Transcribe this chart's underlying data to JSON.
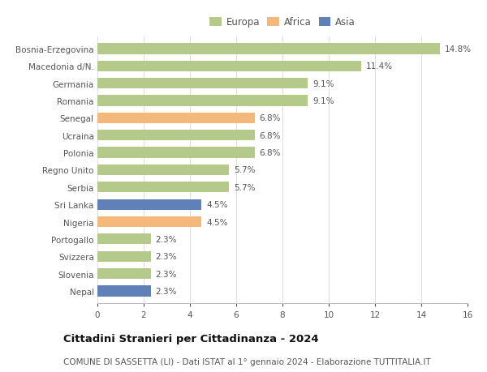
{
  "countries": [
    "Bosnia-Erzegovina",
    "Macedonia d/N.",
    "Germania",
    "Romania",
    "Senegal",
    "Ucraina",
    "Polonia",
    "Regno Unito",
    "Serbia",
    "Sri Lanka",
    "Nigeria",
    "Portogallo",
    "Svizzera",
    "Slovenia",
    "Nepal"
  ],
  "values": [
    14.8,
    11.4,
    9.1,
    9.1,
    6.8,
    6.8,
    6.8,
    5.7,
    5.7,
    4.5,
    4.5,
    2.3,
    2.3,
    2.3,
    2.3
  ],
  "categories": [
    "Europa",
    "Africa",
    "Asia"
  ],
  "continent": [
    "Europa",
    "Europa",
    "Europa",
    "Europa",
    "Africa",
    "Europa",
    "Europa",
    "Europa",
    "Europa",
    "Asia",
    "Africa",
    "Europa",
    "Europa",
    "Europa",
    "Asia"
  ],
  "colors": {
    "Europa": "#b5c98a",
    "Africa": "#f4b97a",
    "Asia": "#6080b8"
  },
  "xlim": [
    0,
    16
  ],
  "xticks": [
    0,
    2,
    4,
    6,
    8,
    10,
    12,
    14,
    16
  ],
  "title": "Cittadini Stranieri per Cittadinanza - 2024",
  "subtitle": "COMUNE DI SASSETTA (LI) - Dati ISTAT al 1° gennaio 2024 - Elaborazione TUTTITALIA.IT",
  "background_color": "#ffffff",
  "bar_height": 0.62,
  "label_fontsize": 7.5,
  "title_fontsize": 9.5,
  "subtitle_fontsize": 7.5,
  "tick_fontsize": 7.5,
  "legend_fontsize": 8.5
}
